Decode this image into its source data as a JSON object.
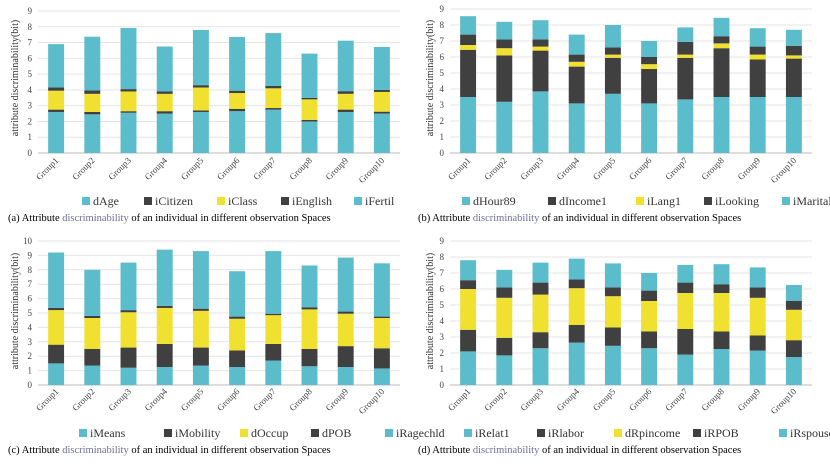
{
  "palette": {
    "teal": "#5bbccb",
    "dark": "#404040",
    "yellow": "#f0e130",
    "grid": "#e4e4e4",
    "axis": "#bbbbbb"
  },
  "chart_data": [
    {
      "type": "bar",
      "stacked": true,
      "ylabel": "attribute discriminability(bit)",
      "ylim": [
        0,
        9
      ],
      "yticks": [
        0,
        1,
        2,
        3,
        4,
        5,
        6,
        7,
        8,
        9
      ],
      "categories": [
        "Group1",
        "Group2",
        "Group3",
        "Group4",
        "Group5",
        "Group6",
        "Group7",
        "Group8",
        "Group9",
        "Group10"
      ],
      "series": [
        {
          "name": "dAge",
          "color": "teal",
          "values": [
            2.6,
            2.45,
            2.55,
            2.5,
            2.6,
            2.65,
            2.75,
            2.0,
            2.6,
            2.5
          ]
        },
        {
          "name": "iCitizen",
          "color": "dark",
          "values": [
            0.15,
            0.15,
            0.1,
            0.15,
            0.1,
            0.15,
            0.1,
            0.1,
            0.15,
            0.12
          ]
        },
        {
          "name": "iClass",
          "color": "yellow",
          "values": [
            1.2,
            1.15,
            1.25,
            1.1,
            1.45,
            1.0,
            1.25,
            1.3,
            1.0,
            1.25
          ]
        },
        {
          "name": "iEnglish",
          "color": "dark",
          "values": [
            0.2,
            0.22,
            0.15,
            0.15,
            0.15,
            0.15,
            0.15,
            0.1,
            0.17,
            0.13
          ]
        },
        {
          "name": "iFertil",
          "color": "teal",
          "values": [
            2.75,
            3.4,
            3.87,
            2.85,
            3.5,
            3.4,
            3.35,
            2.8,
            3.2,
            2.72
          ]
        }
      ],
      "caption_parts": [
        "(a) Attribute ",
        "discriminability",
        " of an individual in different observation Spaces"
      ]
    },
    {
      "type": "bar",
      "stacked": true,
      "ylabel": "attribute discriminability(bit)",
      "ylim": [
        0,
        9
      ],
      "yticks": [
        0,
        1,
        2,
        3,
        4,
        5,
        6,
        7,
        8,
        9
      ],
      "categories": [
        "Group1",
        "Group2",
        "Group3",
        "Group4",
        "Group5",
        "Group6",
        "Group7",
        "Group8",
        "Group9",
        "Group10"
      ],
      "series": [
        {
          "name": "dHour89",
          "color": "teal",
          "values": [
            3.5,
            3.2,
            3.85,
            3.1,
            3.7,
            3.1,
            3.35,
            3.5,
            3.5,
            3.5
          ]
        },
        {
          "name": "dIncome1",
          "color": "dark",
          "values": [
            2.95,
            2.9,
            2.55,
            2.3,
            2.25,
            2.15,
            2.6,
            3.05,
            2.35,
            2.4
          ]
        },
        {
          "name": "iLang1",
          "color": "yellow",
          "values": [
            0.3,
            0.45,
            0.25,
            0.3,
            0.2,
            0.3,
            0.2,
            0.3,
            0.3,
            0.2
          ]
        },
        {
          "name": "iLooking",
          "color": "dark",
          "values": [
            0.65,
            0.55,
            0.45,
            0.45,
            0.45,
            0.45,
            0.8,
            0.45,
            0.5,
            0.6
          ]
        },
        {
          "name": "iMarital",
          "color": "teal",
          "values": [
            1.15,
            1.1,
            1.2,
            1.25,
            1.4,
            1.0,
            0.9,
            1.15,
            1.15,
            1.0
          ]
        }
      ],
      "caption_parts": [
        "(b) Attribute ",
        "discriminability",
        " of an individual in different observation Spaces"
      ]
    },
    {
      "type": "bar",
      "stacked": true,
      "ylabel": "attribute discriminability(bit)",
      "ylim": [
        0,
        10
      ],
      "yticks": [
        0,
        1,
        2,
        3,
        4,
        5,
        6,
        7,
        8,
        9,
        10
      ],
      "categories": [
        "Group1",
        "Group2",
        "Group3",
        "Group4",
        "Group5",
        "Group6",
        "Group7",
        "Group8",
        "Group9",
        "Group10"
      ],
      "series": [
        {
          "name": "iMeans",
          "color": "teal",
          "values": [
            1.5,
            1.35,
            1.2,
            1.25,
            1.35,
            1.25,
            1.7,
            1.3,
            1.25,
            1.15
          ]
        },
        {
          "name": "iMobility",
          "color": "dark",
          "values": [
            1.3,
            1.15,
            1.4,
            1.6,
            1.25,
            1.15,
            1.15,
            1.2,
            1.45,
            1.4
          ]
        },
        {
          "name": "dOccup",
          "color": "yellow",
          "values": [
            2.4,
            2.15,
            2.45,
            2.5,
            2.55,
            2.2,
            2.0,
            2.75,
            2.25,
            2.1
          ]
        },
        {
          "name": "dPOB",
          "color": "dark",
          "values": [
            0.15,
            0.15,
            0.15,
            0.15,
            0.15,
            0.15,
            0.1,
            0.15,
            0.15,
            0.1
          ]
        },
        {
          "name": "iRagechld",
          "color": "teal",
          "values": [
            3.85,
            3.2,
            3.3,
            3.9,
            4.0,
            3.15,
            4.35,
            2.9,
            3.75,
            3.7
          ]
        }
      ],
      "caption_parts": [
        "(c) Attribute ",
        "discriminability",
        " of an individual in different observation Spaces"
      ]
    },
    {
      "type": "bar",
      "stacked": true,
      "ylabel": "attribute discriminability(bit)",
      "ylim": [
        0,
        9
      ],
      "yticks": [
        0,
        1,
        2,
        3,
        4,
        5,
        6,
        7,
        8,
        9
      ],
      "categories": [
        "Group1",
        "Group2",
        "Group3",
        "Group4",
        "Group5",
        "Group6",
        "Group7",
        "Group8",
        "Group9",
        "Group10"
      ],
      "series": [
        {
          "name": "iRelat1",
          "color": "teal",
          "values": [
            2.1,
            1.85,
            2.3,
            2.65,
            2.45,
            2.3,
            1.9,
            2.25,
            2.15,
            1.75
          ]
        },
        {
          "name": "iRlabor",
          "color": "dark",
          "values": [
            1.35,
            1.1,
            1.0,
            1.1,
            1.15,
            1.05,
            1.6,
            1.1,
            0.95,
            1.05
          ]
        },
        {
          "name": "dRpincome",
          "color": "yellow",
          "values": [
            2.55,
            2.5,
            2.35,
            2.3,
            1.95,
            1.9,
            2.25,
            2.4,
            2.35,
            1.9
          ]
        },
        {
          "name": "iRPOB",
          "color": "dark",
          "values": [
            0.55,
            0.65,
            0.75,
            0.55,
            0.55,
            0.65,
            0.65,
            0.55,
            0.65,
            0.55
          ]
        },
        {
          "name": "iRspouse",
          "color": "teal",
          "values": [
            1.25,
            1.1,
            1.25,
            1.3,
            1.5,
            1.1,
            1.1,
            1.25,
            1.25,
            1.0
          ]
        }
      ],
      "caption_parts": [
        "(d) Attribute ",
        "discriminability",
        " of an individual in different observation Spaces"
      ]
    }
  ]
}
